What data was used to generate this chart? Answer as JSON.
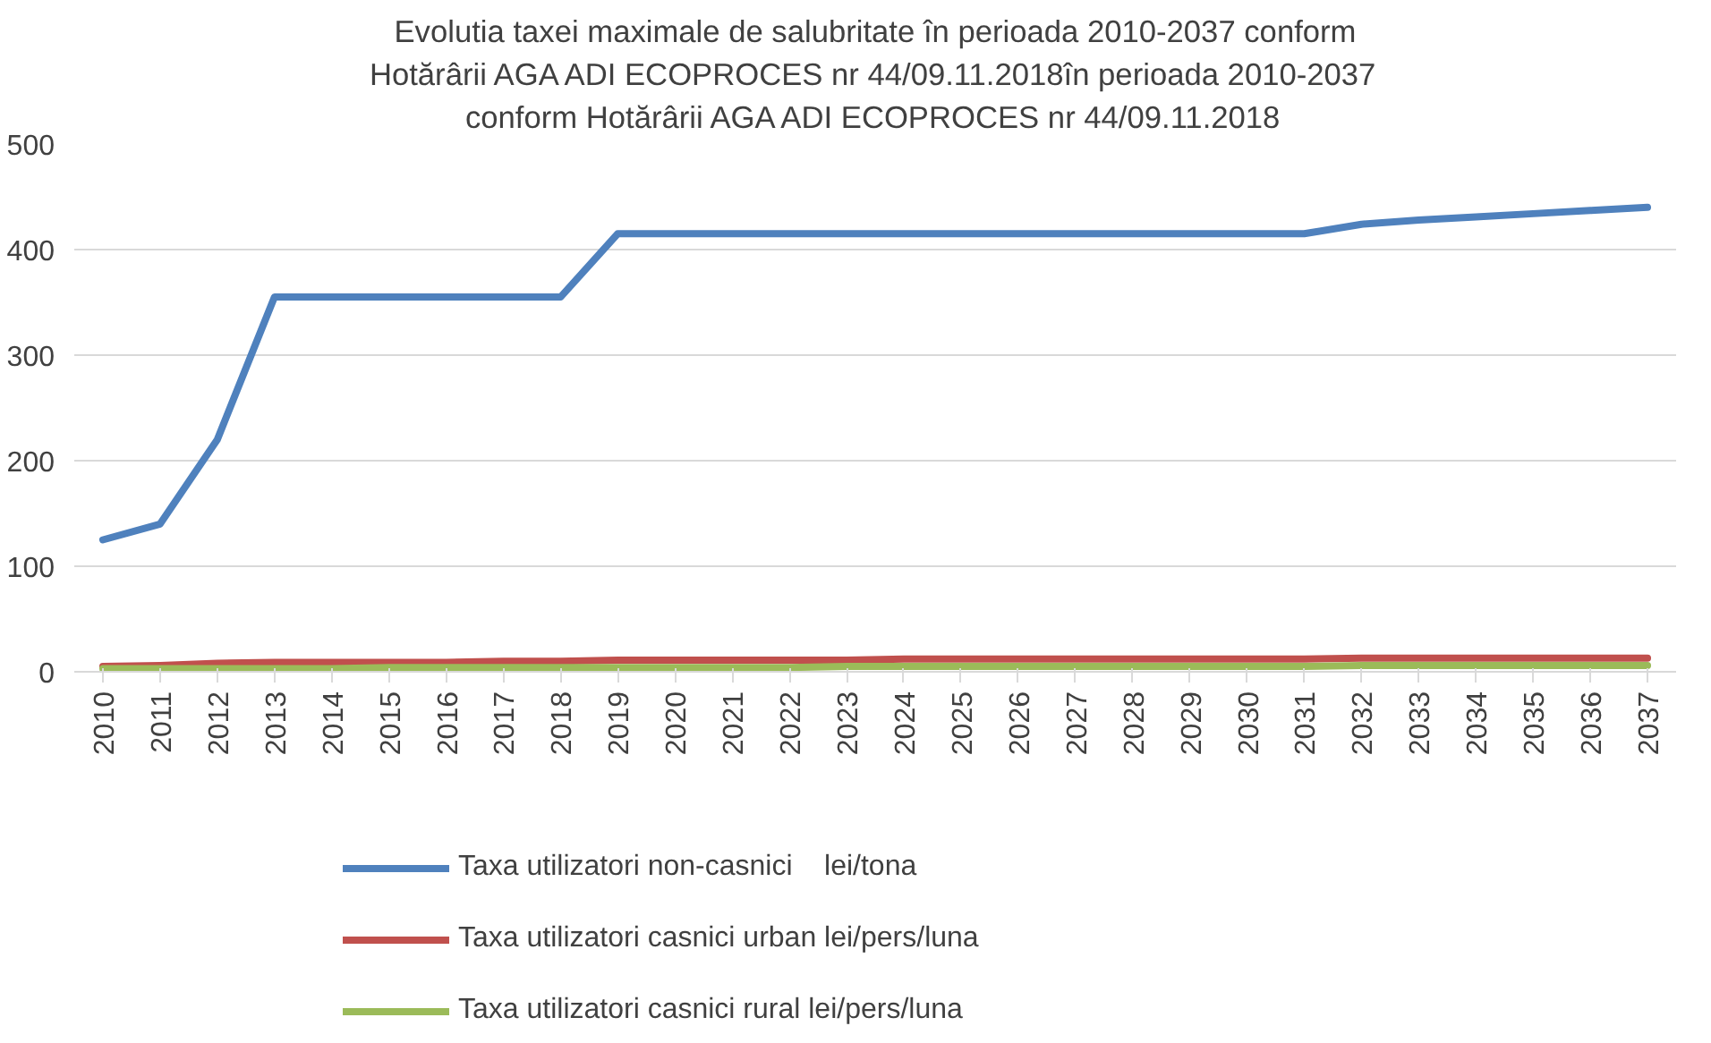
{
  "chart_data": {
    "type": "line",
    "title": "Evolutia taxei maximale de salubritate în perioada 2010-2037 conform Hotărârii AGA ADI ECOPROCES nr 44/09.11.2018în perioada 2010-2037 conform Hotărârii AGA ADI ECOPROCES nr 44/09.11.2018",
    "categories": [
      "2010",
      "2011",
      "2012",
      "2013",
      "2014",
      "2015",
      "2016",
      "2017",
      "2018",
      "2019",
      "2020",
      "2021",
      "2022",
      "2023",
      "2024",
      "2025",
      "2026",
      "2027",
      "2028",
      "2029",
      "2030",
      "2031",
      "2032",
      "2033",
      "2034",
      "2035",
      "2036",
      "2037"
    ],
    "series": [
      {
        "name": "Taxa utilizatori non-casnici    lei/tona",
        "color": "#4f81bd",
        "values": [
          125,
          140,
          220,
          355,
          355,
          355,
          355,
          355,
          355,
          415,
          415,
          415,
          415,
          415,
          415,
          415,
          415,
          415,
          415,
          415,
          415,
          415,
          424,
          428,
          431,
          434,
          437,
          440
        ]
      },
      {
        "name": "Taxa utilizatori casnici urban lei/pers/luna",
        "color": "#c0504d",
        "values": [
          5,
          6,
          8,
          9,
          9,
          9,
          9,
          10,
          10,
          11,
          11,
          11,
          11,
          11,
          12,
          12,
          12,
          12,
          12,
          12,
          12,
          12,
          13,
          13,
          13,
          13,
          13,
          13
        ]
      },
      {
        "name": "Taxa utilizatori casnici rural lei/pers/luna",
        "color": "#9bbb59",
        "values": [
          3,
          3,
          3,
          3,
          3,
          4,
          4,
          4,
          4,
          4,
          4,
          4,
          4,
          5,
          5,
          5,
          5,
          5,
          5,
          5,
          5,
          5,
          6,
          6,
          6,
          6,
          6,
          6
        ]
      }
    ],
    "ylim": [
      0,
      500
    ],
    "yticks": [
      0,
      100,
      200,
      300,
      400,
      500
    ],
    "grid": "y",
    "legend": "bottom",
    "marker": "none",
    "line_style": "solid"
  }
}
